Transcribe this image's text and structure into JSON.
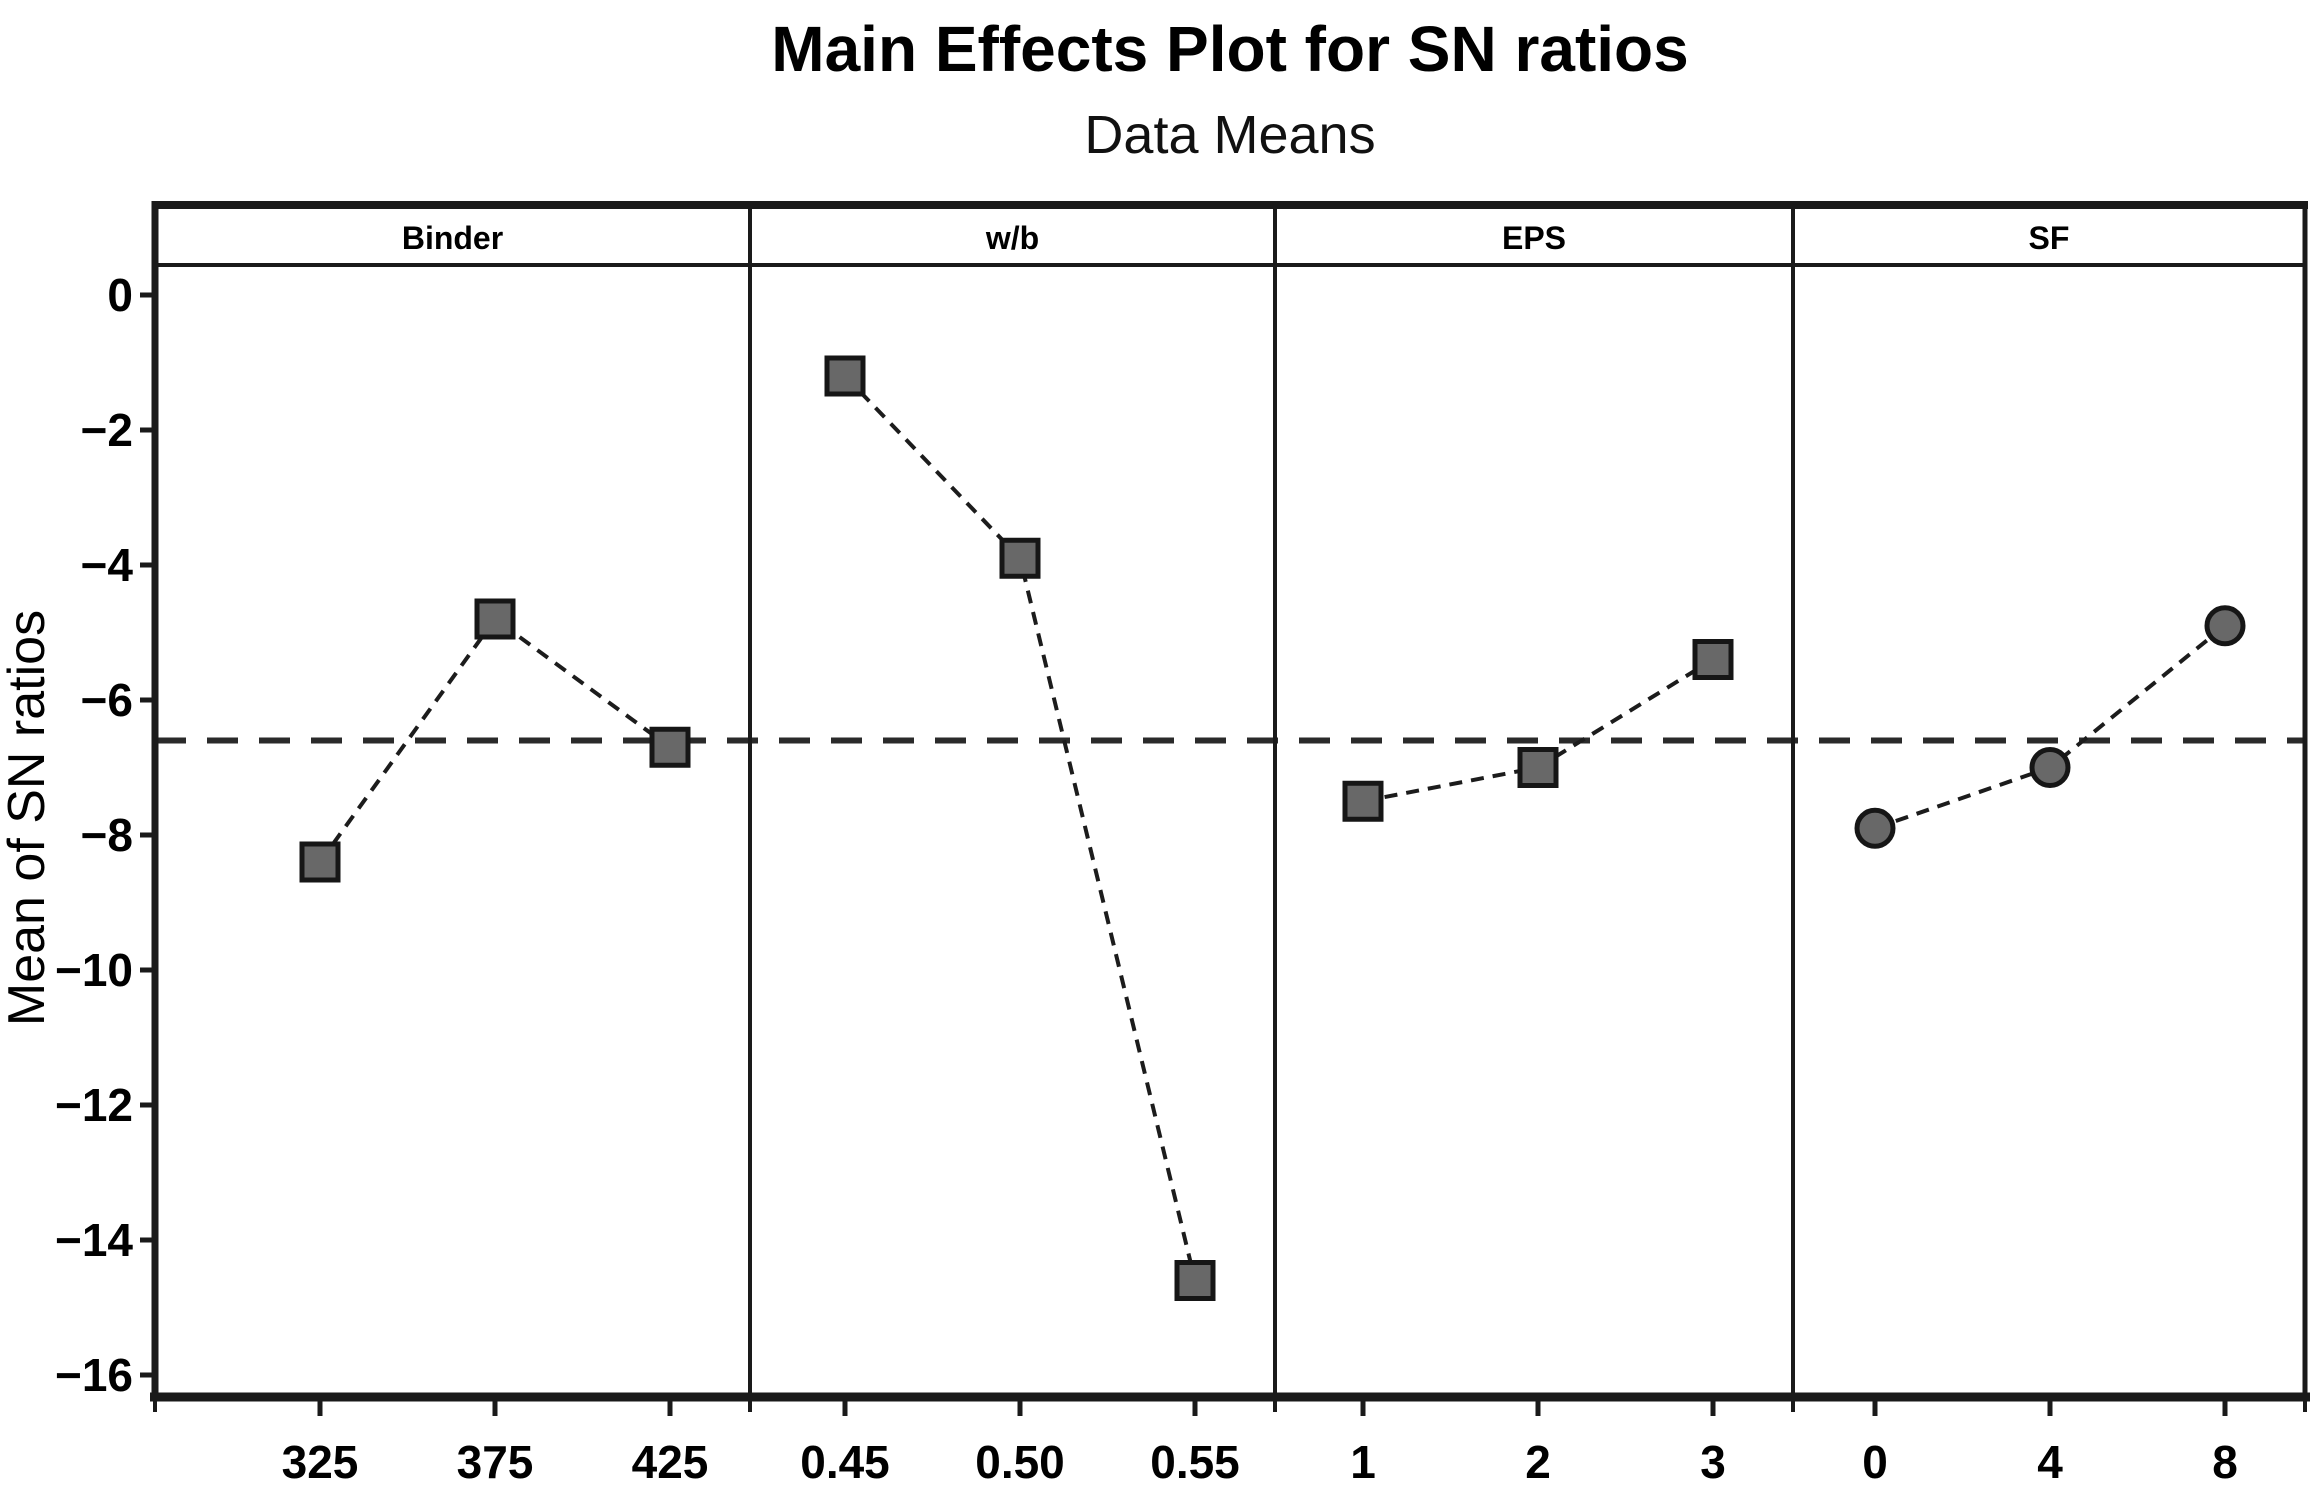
{
  "chart_data": {
    "type": "line",
    "title": "Main Effects Plot for SN ratios",
    "subtitle": "Data Means",
    "ylabel": "Mean of SN ratios",
    "xlabel": "",
    "ylim": [
      -16.4,
      0.45
    ],
    "ytick_values": [
      0,
      -2,
      -4,
      -6,
      -8,
      -10,
      -12,
      -14,
      -16
    ],
    "ytick_labels": [
      "0",
      "−2",
      "−4",
      "−6",
      "−8",
      "−10",
      "−12",
      "−14",
      "−16"
    ],
    "reference_line": {
      "value": -6.6,
      "style": "dashed"
    },
    "grid": false,
    "legend": "none",
    "line_style": "dashed",
    "panels": [
      {
        "factor": "Binder",
        "levels": [
          "325",
          "375",
          "425"
        ],
        "values": [
          -8.4,
          -4.8,
          -6.7
        ],
        "marker": "square"
      },
      {
        "factor": "w/b",
        "levels": [
          "0.45",
          "0.50",
          "0.55"
        ],
        "values": [
          -1.2,
          -3.9,
          -14.6
        ],
        "marker": "square"
      },
      {
        "factor": "EPS",
        "levels": [
          "1",
          "2",
          "3"
        ],
        "values": [
          -7.5,
          -7.0,
          -5.4
        ],
        "marker": "square"
      },
      {
        "factor": "SF",
        "levels": [
          "0",
          "4",
          "8"
        ],
        "values": [
          -7.9,
          -7.0,
          -4.9
        ],
        "marker": "circle"
      }
    ],
    "colors": {
      "background": "#ffffff",
      "text": "#000000",
      "axis": "#1a1a1a",
      "marker_fill": "#686868",
      "marker_edge": "#161616",
      "line": "#1c1c1c",
      "reference_line": "#2a2a2a"
    }
  }
}
